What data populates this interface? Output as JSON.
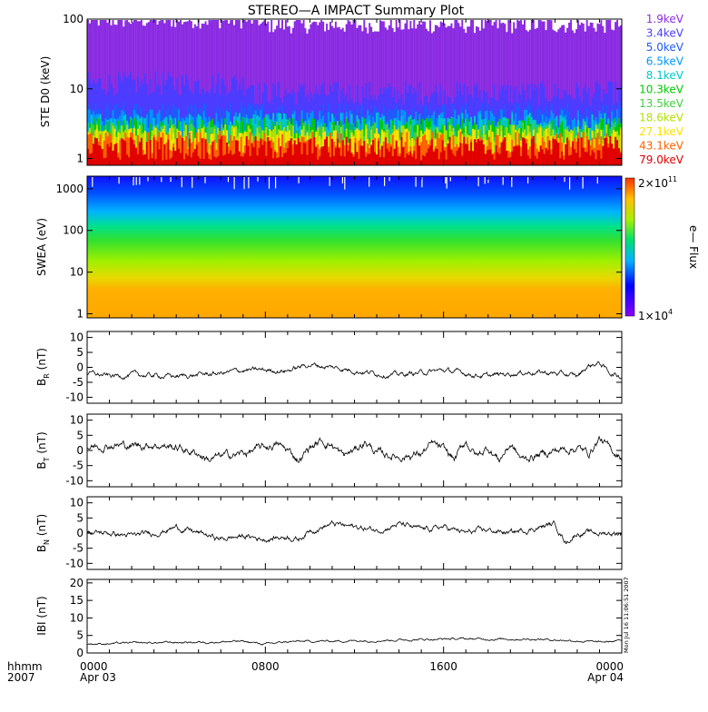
{
  "title": "STEREO—A IMPACT Summary Plot",
  "stamp": "Mon Jul 16 11:06:51 2007",
  "time_axis": {
    "unit_label": "hhmm",
    "year_label": "2007",
    "ticks": [
      {
        "hour": 0,
        "label": "0000",
        "date": "Apr 03"
      },
      {
        "hour": 8,
        "label": "0800",
        "date": ""
      },
      {
        "hour": 16,
        "label": "1600",
        "date": ""
      },
      {
        "hour": 24,
        "label": "0000",
        "date": "Apr 04"
      }
    ]
  },
  "chart_data": [
    {
      "type": "line",
      "id": "ste",
      "ylabel": "STE D0 (keV)",
      "yscale": "log",
      "ylim": [
        0.8,
        100
      ],
      "ytick_labels": [
        "1",
        "10",
        "100"
      ],
      "ytick_values": [
        1,
        10,
        100
      ],
      "x_range_hours": [
        0,
        24
      ],
      "series": [
        {
          "name": "1.9keV",
          "color": "#8a2be2",
          "typical": 80
        },
        {
          "name": "3.4keV",
          "color": "#4b3cff",
          "typical": 8
        },
        {
          "name": "5.0keV",
          "color": "#1e5aff",
          "typical": 4
        },
        {
          "name": "6.5keV",
          "color": "#0096ff",
          "typical": 3.2
        },
        {
          "name": "8.1keV",
          "color": "#00c8c8",
          "typical": 2.8
        },
        {
          "name": "10.3keV",
          "color": "#00c800",
          "typical": 2.4
        },
        {
          "name": "13.5keV",
          "color": "#40d040",
          "typical": 2.1
        },
        {
          "name": "18.6keV",
          "color": "#b0e000",
          "typical": 1.9
        },
        {
          "name": "27.1keV",
          "color": "#ffe000",
          "typical": 1.7
        },
        {
          "name": "43.1keV",
          "color": "#ff6000",
          "typical": 1.5
        },
        {
          "name": "79.0keV",
          "color": "#e00000",
          "typical": 1.3
        }
      ]
    },
    {
      "type": "heatmap",
      "id": "swea",
      "ylabel": "SWEA (eV)",
      "yscale": "log",
      "ylim": [
        0.8,
        2000
      ],
      "ytick_labels": [
        "1",
        "10",
        "100",
        "1000"
      ],
      "ytick_values": [
        1,
        10,
        100,
        1000
      ],
      "colorbar": {
        "label": "e— Flux",
        "max_label": "2×10",
        "max_exp": "11",
        "min_label": "1×10",
        "min_exp": "4",
        "range": [
          10000,
          200000000000
        ]
      }
    },
    {
      "type": "line",
      "id": "br",
      "ylabel_main": "B",
      "ylabel_sub": "R",
      "ylabel_unit": "(nT)",
      "ylim": [
        -12,
        12
      ],
      "ytick_labels": [
        "10",
        "5",
        "0",
        "-5",
        "-10"
      ],
      "ytick_values": [
        10,
        5,
        0,
        -5,
        -10
      ],
      "keypoints": [
        [
          0,
          -2
        ],
        [
          1,
          -3
        ],
        [
          2,
          -2.5
        ],
        [
          4,
          -3
        ],
        [
          5,
          -2.5
        ],
        [
          6,
          -2
        ],
        [
          7,
          -1
        ],
        [
          8,
          -1
        ],
        [
          9,
          -1
        ],
        [
          9.5,
          0
        ],
        [
          10,
          1
        ],
        [
          10.5,
          0.5
        ],
        [
          11,
          0
        ],
        [
          12,
          -1
        ],
        [
          13,
          -2
        ],
        [
          14,
          -2.5
        ],
        [
          16,
          -1
        ],
        [
          17,
          -2
        ],
        [
          18,
          -3
        ],
        [
          19,
          -2
        ],
        [
          20,
          -1.5
        ],
        [
          21,
          -2
        ],
        [
          22,
          -3
        ],
        [
          22.5,
          0.5
        ],
        [
          23,
          1.5
        ],
        [
          23.5,
          -2
        ],
        [
          24,
          -3
        ]
      ],
      "noise": 1
    },
    {
      "type": "line",
      "id": "bt",
      "ylabel_main": "B",
      "ylabel_sub": "T",
      "ylabel_unit": "(nT)",
      "ylim": [
        -12,
        12
      ],
      "ytick_labels": [
        "10",
        "5",
        "0",
        "-5",
        "-10"
      ],
      "ytick_values": [
        10,
        5,
        0,
        -5,
        -10
      ],
      "keypoints": [
        [
          0,
          1
        ],
        [
          1,
          2
        ],
        [
          2,
          1.5
        ],
        [
          3,
          2
        ],
        [
          4,
          1
        ],
        [
          5,
          -1
        ],
        [
          5.5,
          -3
        ],
        [
          6,
          -2
        ],
        [
          7,
          -1
        ],
        [
          8,
          1
        ],
        [
          8.5,
          2
        ],
        [
          9,
          0
        ],
        [
          9.5,
          -3
        ],
        [
          10,
          1
        ],
        [
          10.5,
          3
        ],
        [
          11,
          2
        ],
        [
          11.5,
          -2
        ],
        [
          12,
          0
        ],
        [
          12.5,
          3
        ],
        [
          13,
          -1
        ],
        [
          14,
          -2
        ],
        [
          15,
          -1
        ],
        [
          15.5,
          2
        ],
        [
          16,
          0
        ],
        [
          16.5,
          -3
        ],
        [
          17,
          3
        ],
        [
          17.5,
          -2
        ],
        [
          18,
          1
        ],
        [
          18.5,
          -3
        ],
        [
          19,
          2
        ],
        [
          19.5,
          -3
        ],
        [
          20,
          -2
        ],
        [
          21,
          0
        ],
        [
          22,
          1
        ],
        [
          22.5,
          -1
        ],
        [
          23,
          4
        ],
        [
          23.5,
          0
        ],
        [
          24,
          -2
        ]
      ],
      "noise": 1.6
    },
    {
      "type": "line",
      "id": "bn",
      "ylabel_main": "B",
      "ylabel_sub": "N",
      "ylabel_unit": "(nT)",
      "ylim": [
        -12,
        12
      ],
      "ytick_labels": [
        "10",
        "5",
        "0",
        "-5",
        "-10"
      ],
      "ytick_values": [
        10,
        5,
        0,
        -5,
        -10
      ],
      "keypoints": [
        [
          0,
          0
        ],
        [
          1,
          0
        ],
        [
          2,
          -1
        ],
        [
          3,
          0
        ],
        [
          4,
          2
        ],
        [
          5,
          0
        ],
        [
          6,
          -2
        ],
        [
          7,
          -1
        ],
        [
          8,
          -2
        ],
        [
          9,
          -1
        ],
        [
          9.5,
          -2
        ],
        [
          10,
          1
        ],
        [
          11,
          3
        ],
        [
          12,
          2
        ],
        [
          13,
          1
        ],
        [
          14,
          3
        ],
        [
          15,
          1
        ],
        [
          16,
          2
        ],
        [
          17,
          0
        ],
        [
          18,
          1
        ],
        [
          19,
          0
        ],
        [
          20,
          1.5
        ],
        [
          21,
          3
        ],
        [
          21.5,
          -3
        ],
        [
          22,
          0
        ],
        [
          23,
          0
        ],
        [
          24,
          0
        ]
      ],
      "noise": 1.1
    },
    {
      "type": "line",
      "id": "babs",
      "ylabel": "IBI (nT)",
      "ylim": [
        0,
        21
      ],
      "ytick_labels": [
        "20",
        "15",
        "10",
        "5",
        "0"
      ],
      "ytick_values": [
        20,
        15,
        10,
        5,
        0
      ],
      "keypoints": [
        [
          0,
          2.6
        ],
        [
          4,
          3
        ],
        [
          7,
          3.3
        ],
        [
          8,
          2.5
        ],
        [
          9,
          3.2
        ],
        [
          12,
          3.5
        ],
        [
          16,
          4
        ],
        [
          20,
          4
        ],
        [
          22,
          3.5
        ],
        [
          23,
          3
        ],
        [
          24,
          3.5
        ]
      ],
      "noise": 0.35
    }
  ]
}
